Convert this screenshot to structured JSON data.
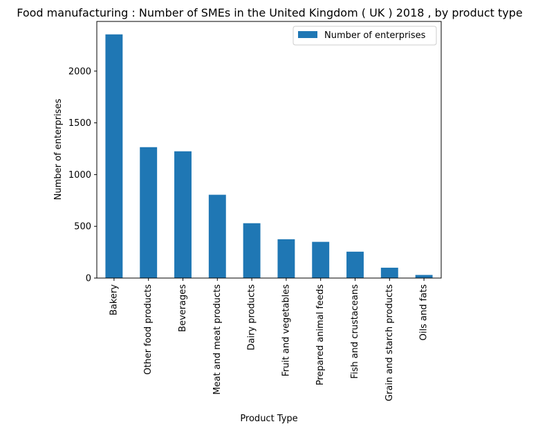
{
  "chart_data": {
    "type": "bar",
    "title": "Food manufacturing : Number of SMEs in the United Kingdom ( UK ) 2018 , by product type",
    "xlabel": "Product Type",
    "ylabel": "Number of enterprises",
    "categories": [
      "Bakery",
      "Other food products",
      "Beverages",
      "Meat and meat products",
      "Dairy products",
      "Fruit and vegetables",
      "Prepared animal feeds",
      "Fish and crustaceans",
      "Grain and starch products",
      "Oils and fats"
    ],
    "series": [
      {
        "name": "Number of enterprises",
        "values": [
          2355,
          1265,
          1225,
          805,
          530,
          375,
          350,
          255,
          100,
          30
        ]
      }
    ],
    "ylim": [
      0,
      2480
    ],
    "yticks": [
      0,
      500,
      1000,
      1500,
      2000
    ],
    "grid": false,
    "legend": "top-right",
    "bar_color": "#1f77b4"
  }
}
